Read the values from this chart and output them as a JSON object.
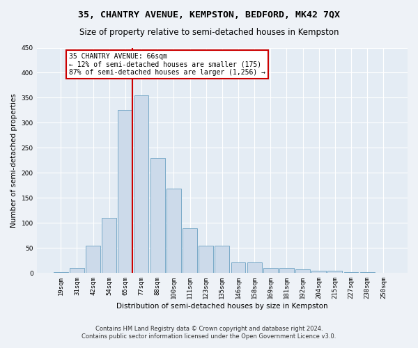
{
  "title": "35, CHANTRY AVENUE, KEMPSTON, BEDFORD, MK42 7QX",
  "subtitle": "Size of property relative to semi-detached houses in Kempston",
  "xlabel": "Distribution of semi-detached houses by size in Kempston",
  "ylabel": "Number of semi-detached properties",
  "footnote1": "Contains HM Land Registry data © Crown copyright and database right 2024.",
  "footnote2": "Contains public sector information licensed under the Open Government Licence v3.0.",
  "bar_labels": [
    "19sqm",
    "31sqm",
    "42sqm",
    "54sqm",
    "65sqm",
    "77sqm",
    "88sqm",
    "100sqm",
    "111sqm",
    "123sqm",
    "135sqm",
    "146sqm",
    "158sqm",
    "169sqm",
    "181sqm",
    "192sqm",
    "204sqm",
    "215sqm",
    "227sqm",
    "238sqm",
    "250sqm"
  ],
  "bar_values": [
    2,
    10,
    55,
    110,
    325,
    355,
    230,
    168,
    90,
    55,
    55,
    22,
    22,
    10,
    10,
    7,
    5,
    5,
    2,
    2,
    1
  ],
  "bar_color": "#ccdaea",
  "bar_edge_color": "#7aaac8",
  "property_line_x": 4,
  "annotation_text_line1": "35 CHANTRY AVENUE: 66sqm",
  "annotation_text_line2": "← 12% of semi-detached houses are smaller (175)",
  "annotation_text_line3": "87% of semi-detached houses are larger (1,256) →",
  "vline_color": "#cc0000",
  "annotation_box_color": "#cc0000",
  "ylim": [
    0,
    450
  ],
  "yticks": [
    0,
    50,
    100,
    150,
    200,
    250,
    300,
    350,
    400,
    450
  ],
  "background_color": "#eef2f7",
  "plot_bg_color": "#e4ecf4",
  "title_fontsize": 9.5,
  "subtitle_fontsize": 8.5,
  "tick_fontsize": 6.5,
  "label_fontsize": 7.5,
  "footnote_fontsize": 6.0,
  "annotation_fontsize": 7.0
}
